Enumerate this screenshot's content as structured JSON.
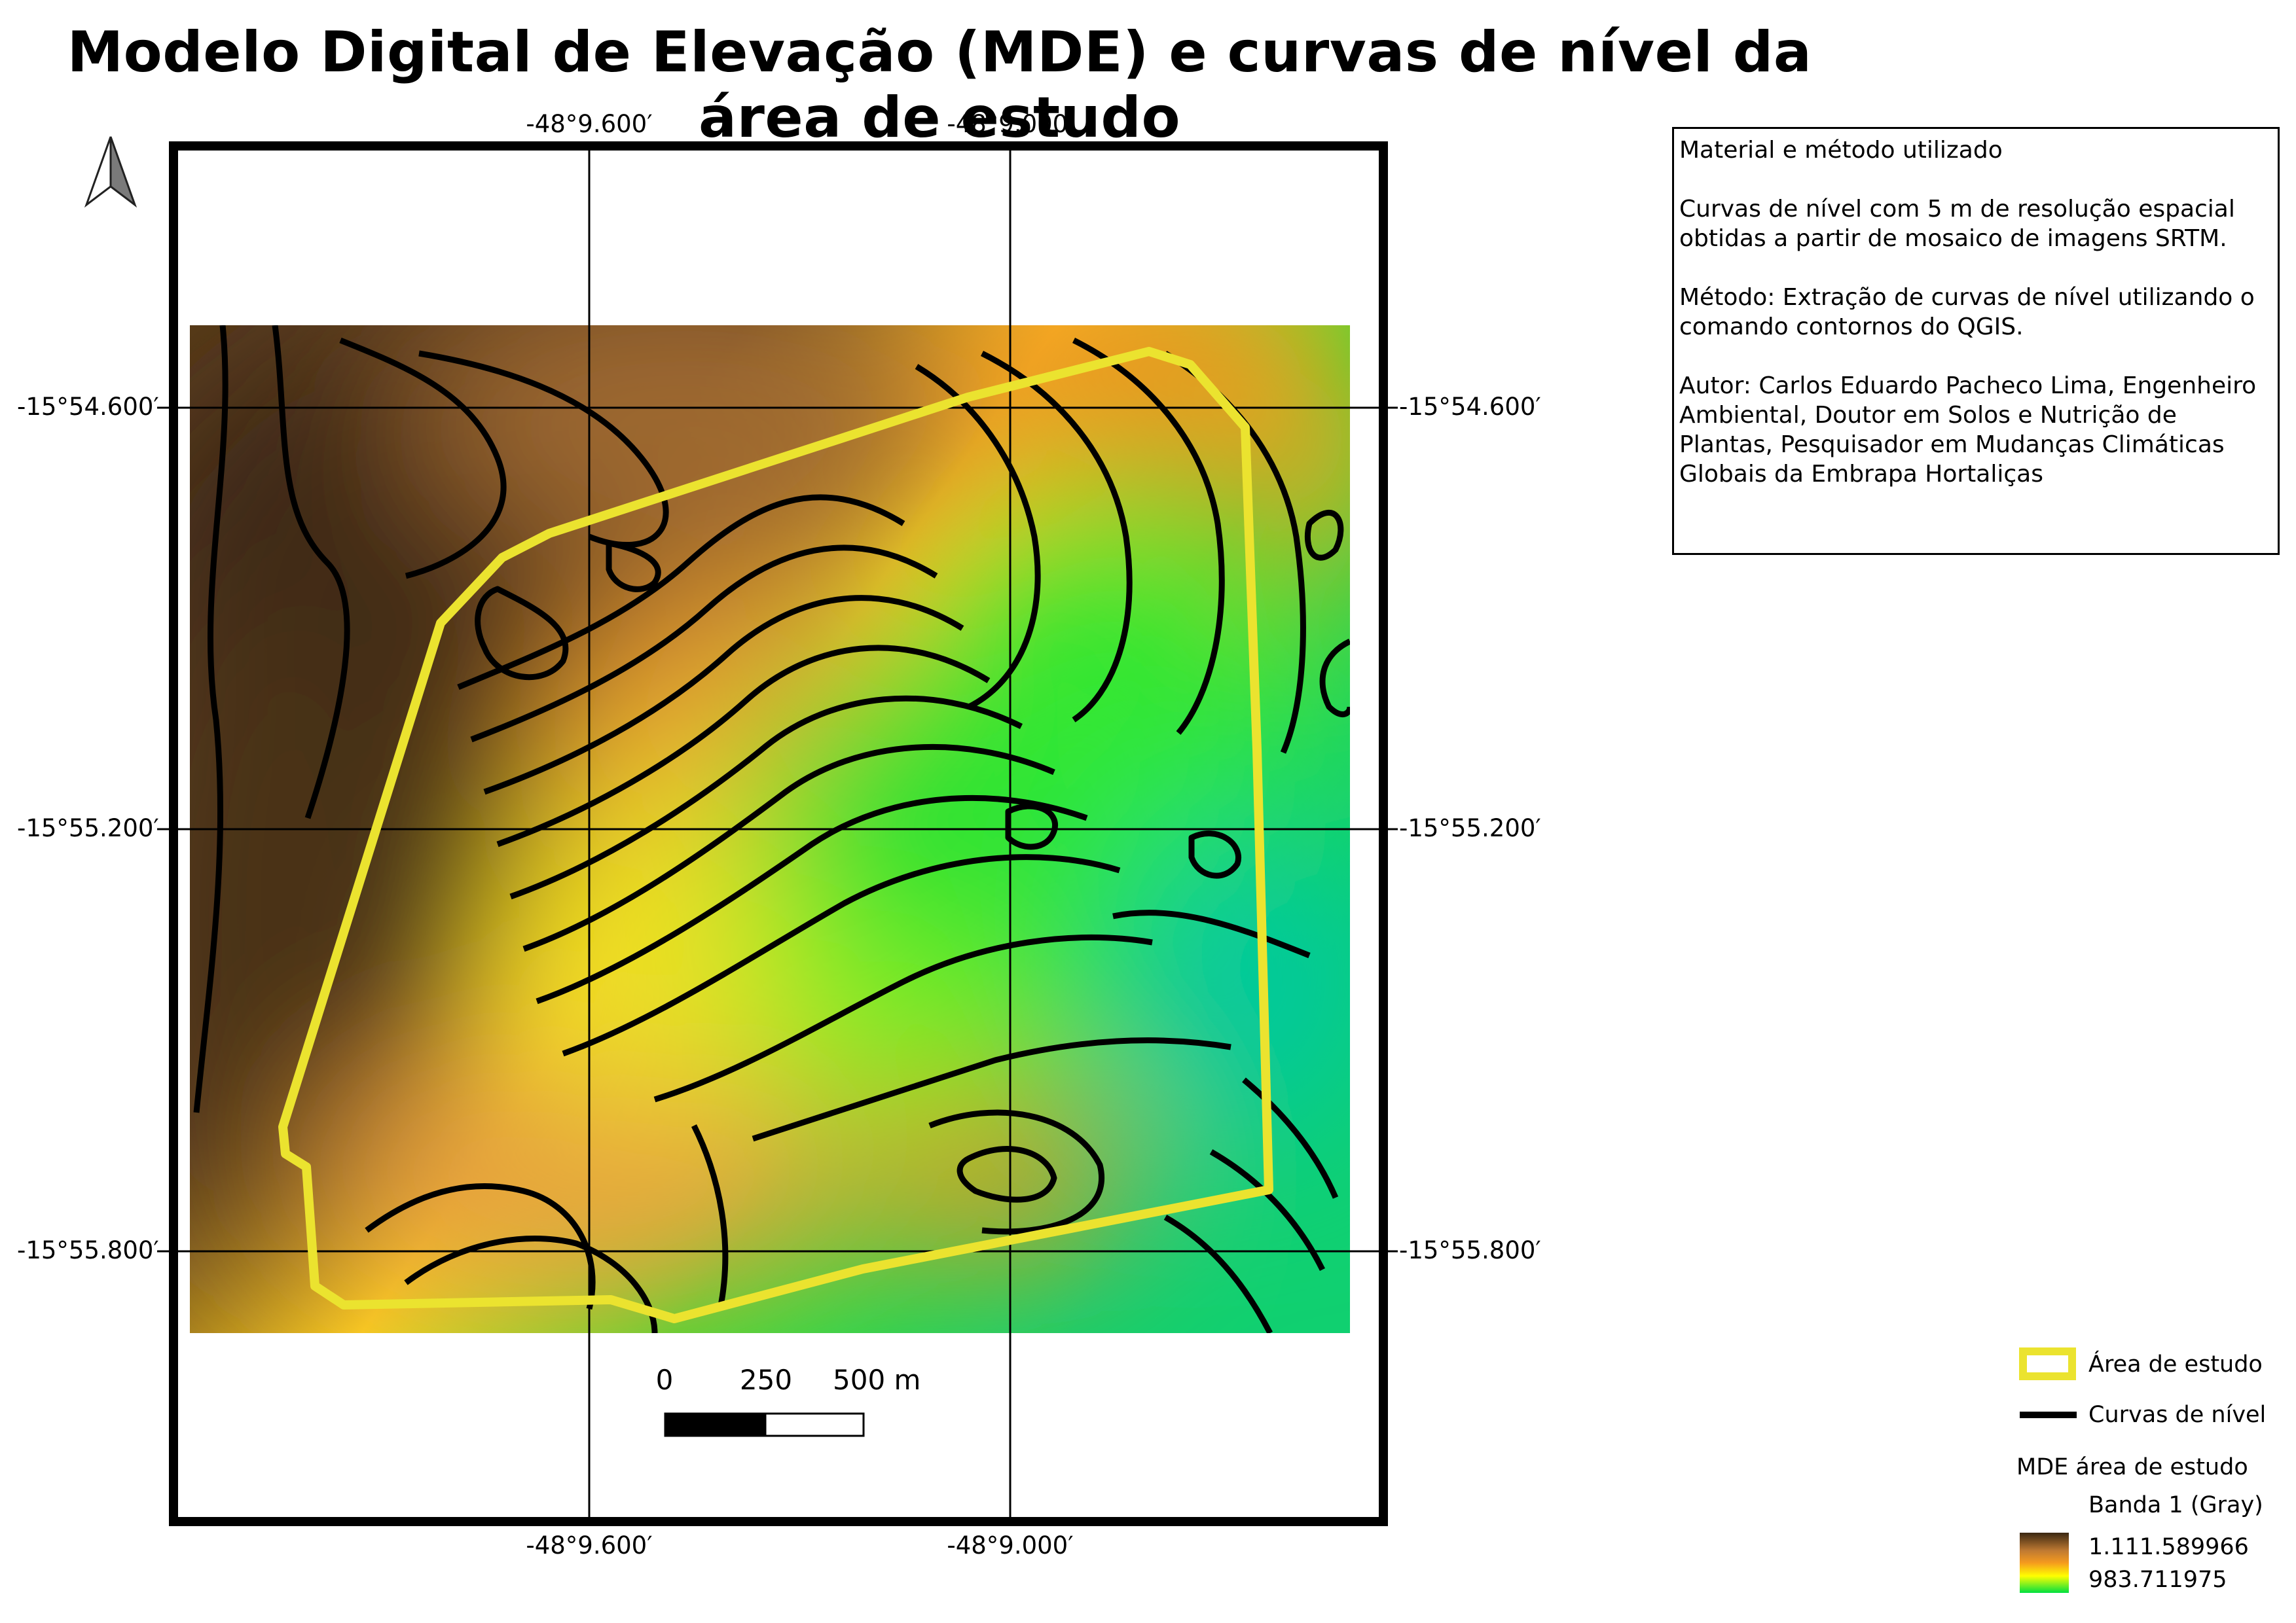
{
  "title": "Modelo Digital de Elevação (MDE) e curvas de nível da área de estudo",
  "north_arrow": {
    "icon": "north-arrow-icon"
  },
  "coordinates": {
    "top": [
      "-48°9.600′",
      "-48°9.000′"
    ],
    "bottom": [
      "-48°9.600′",
      "-48°9.000′"
    ],
    "left": [
      "-15°54.600′",
      "-15°55.200′",
      "-15°55.800′"
    ],
    "right": [
      "-15°54.600′",
      "-15°55.200′",
      "-15°55.800′"
    ]
  },
  "scale_bar": {
    "labels": [
      "0",
      "250",
      "500 m"
    ]
  },
  "info": {
    "heading": "Material e método utilizado",
    "material": "Curvas de nível com 5 m de resolução espacial obtidas a partir de mosaico de imagens SRTM.",
    "method": "Método: Extração de curvas de nível utilizando o comando contornos do QGIS.",
    "author": "Autor: Carlos Eduardo Pacheco Lima, Engenheiro Ambiental, Doutor em Solos e Nutrição de Plantas, Pesquisador em Mudanças Climáticas Globais da Embrapa Hortaliças"
  },
  "legend": {
    "study_area": "Área de estudo",
    "contours": "Curvas de nível",
    "dem_title": "MDE área de estudo",
    "band": "Banda 1 (Gray)",
    "max_value": "1.111.589966",
    "min_value": "983.711975"
  },
  "colors": {
    "study_area_outline": "#ebe32f",
    "contour_line": "#000000",
    "ramp_high": "#3a2812",
    "ramp_mid_high": "#c07a32",
    "ramp_mid": "#f59a1e",
    "ramp_mid_low": "#ffff00",
    "ramp_low": "#00e040",
    "ramp_lowest": "#00c0b0"
  }
}
